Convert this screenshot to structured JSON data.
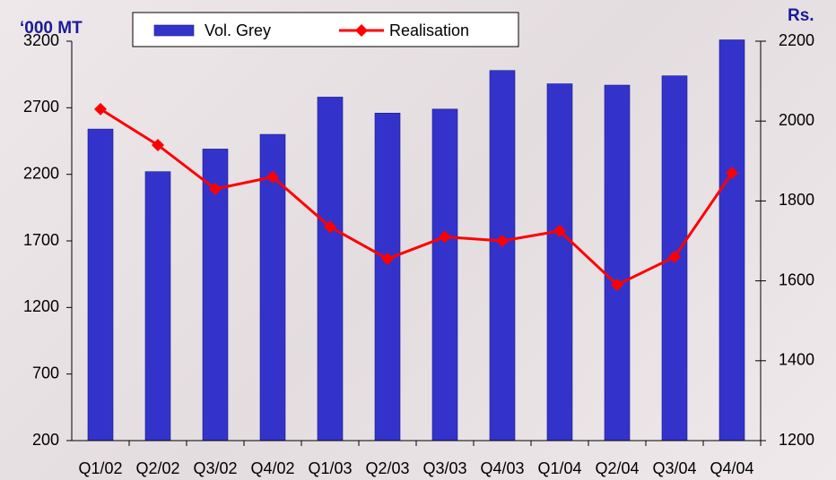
{
  "chart_data": {
    "type": "bar",
    "y_label": "‘000 MT",
    "y2_label": "Rs.",
    "categories": [
      "Q1/02",
      "Q2/02",
      "Q3/02",
      "Q4/02",
      "Q1/03",
      "Q2/03",
      "Q3/03",
      "Q4/03",
      "Q1/04",
      "Q2/04",
      "Q3/04",
      "Q4/04"
    ],
    "series": [
      {
        "name": "Vol. Grey",
        "type": "bar",
        "color": "#3333cc",
        "values": [
          2540,
          2220,
          2390,
          2500,
          2780,
          2660,
          2690,
          2980,
          2880,
          2870,
          2940,
          3210
        ]
      },
      {
        "name": "Realisation",
        "type": "line",
        "axis": "y2",
        "color": "#ff0000",
        "values": [
          2030,
          1940,
          1830,
          1860,
          1735,
          1655,
          1710,
          1700,
          1725,
          1590,
          1660,
          1870
        ]
      }
    ],
    "ylim": [
      200,
      3200
    ],
    "yticks": [
      200,
      700,
      1200,
      1700,
      2200,
      2700,
      3200
    ],
    "y2lim": [
      1200,
      2200
    ],
    "y2ticks": [
      1200,
      1400,
      1600,
      1800,
      2000,
      2200
    ],
    "legend": "top",
    "grid": false
  }
}
